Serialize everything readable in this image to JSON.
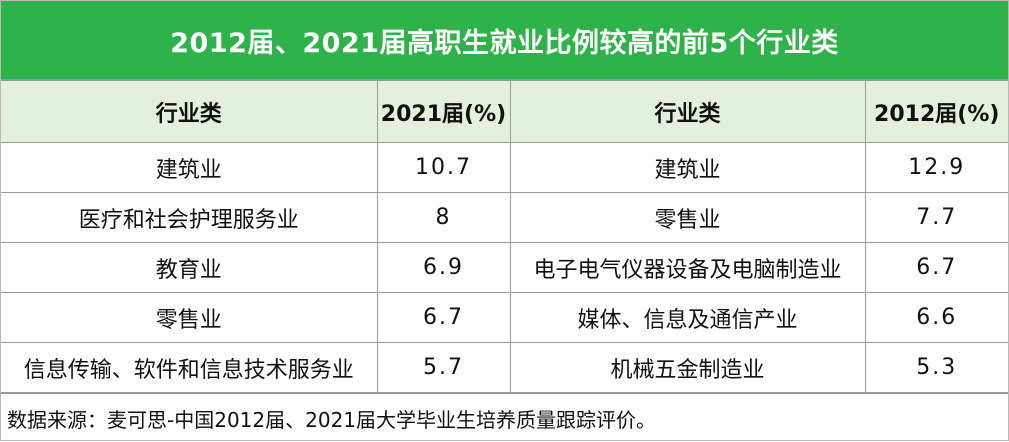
{
  "title": "2012届、2021届高职生就业比例较高的前5个行业类",
  "headers": [
    "行业类",
    "2021届(%)",
    "行业类",
    "2012届(%)"
  ],
  "rows": [
    {
      "ind2021": "建筑业",
      "v2021": "10.7",
      "ind2012": "建筑业",
      "v2012": "12.9"
    },
    {
      "ind2021": "医疗和社会护理服务业",
      "v2021": "8",
      "ind2012": "零售业",
      "v2012": "7.7"
    },
    {
      "ind2021": "教育业",
      "v2021": "6.9",
      "ind2012": "电子电气仪器设备及电脑制造业",
      "v2012": "6.7"
    },
    {
      "ind2021": "零售业",
      "v2021": "6.7",
      "ind2012": "媒体、信息及通信产业",
      "v2012": "6.6"
    },
    {
      "ind2021": "信息传输、软件和信息技术服务业",
      "v2021": "5.7",
      "ind2012": "机械五金制造业",
      "v2012": "5.3"
    }
  ],
  "source": "数据来源：麦可思-中国2012届、2021届大学毕业生培养质量跟踪评价。",
  "colors": {
    "title_bg": "#2eb34a",
    "header_bg": "#e3f1dc"
  }
}
